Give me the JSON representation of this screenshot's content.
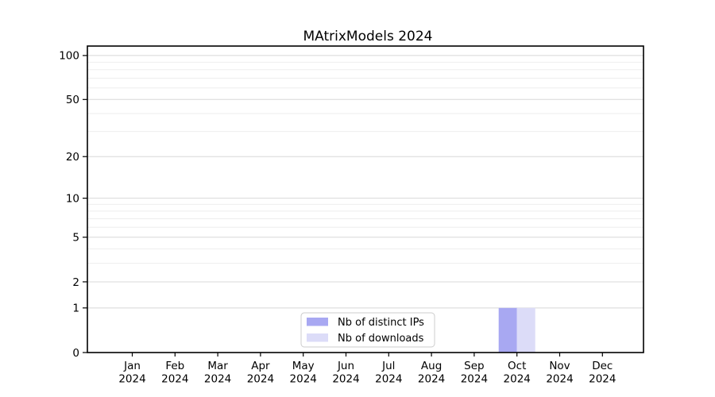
{
  "chart_data": {
    "type": "bar",
    "title": "MAtrixModels 2024",
    "categories": [
      "Jan",
      "Feb",
      "Mar",
      "Apr",
      "May",
      "Jun",
      "Jul",
      "Aug",
      "Sep",
      "Oct",
      "Nov",
      "Dec"
    ],
    "category_year": "2024",
    "series": [
      {
        "name": "Nb of distinct IPs",
        "color": "#a8a8f2",
        "values": [
          0,
          0,
          0,
          0,
          0,
          0,
          0,
          0,
          0,
          1,
          0,
          0
        ]
      },
      {
        "name": "Nb of downloads",
        "color": "#dcdcf8",
        "values": [
          0,
          0,
          0,
          0,
          0,
          0,
          0,
          0,
          0,
          1,
          0,
          0
        ]
      }
    ],
    "xlabel": "",
    "ylabel": "",
    "y_scale": "log1p",
    "y_ticks": [
      0,
      1,
      2,
      5,
      10,
      20,
      50,
      100
    ],
    "y_minor_gridlines": [
      3,
      4,
      6,
      7,
      8,
      9,
      30,
      40,
      60,
      70,
      80,
      90
    ],
    "ylim": [
      0,
      116
    ],
    "grid": true,
    "legend_position": "lower center",
    "colors": {
      "background": "#ffffff",
      "axis": "#000000",
      "text": "#000000",
      "major_grid": "#d8d8d8",
      "minor_grid": "#eeeeee",
      "legend_border": "#cccccc",
      "legend_background": "#ffffff"
    }
  }
}
